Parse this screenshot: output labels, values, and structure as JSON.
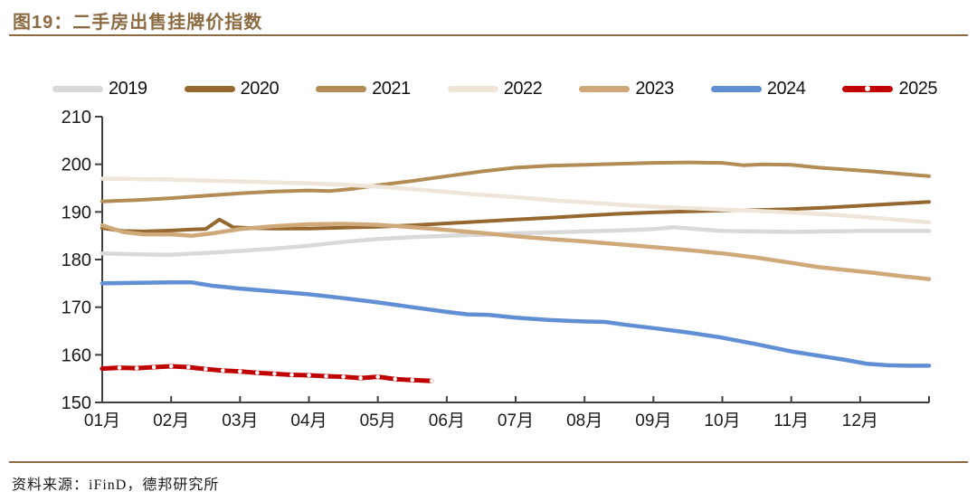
{
  "header": {
    "title": "图19：二手房出售挂牌价指数"
  },
  "footer": {
    "source": "资料来源：iFinD，德邦研究所"
  },
  "colors": {
    "accent_brown": "#8C6A42",
    "axis": "#404040",
    "tick_text": "#1a1a1a"
  },
  "chart_data": {
    "type": "line",
    "title": "二手房出售挂牌价指数",
    "legend_position": "top",
    "grid": false,
    "x_axis": {
      "unit": "month",
      "range_months": [
        0,
        12
      ],
      "tick_labels": [
        "01月",
        "02月",
        "03月",
        "04月",
        "05月",
        "06月",
        "07月",
        "08月",
        "09月",
        "10月",
        "11月",
        "12月"
      ]
    },
    "y_axis": {
      "min": 150,
      "max": 210,
      "step": 10,
      "ticks": [
        210,
        200,
        190,
        180,
        170,
        160,
        150
      ]
    },
    "series": [
      {
        "name": "2019",
        "color": "#D9D9D9",
        "width": 4.5,
        "points": [
          [
            0,
            181.3
          ],
          [
            0.5,
            181.1
          ],
          [
            1,
            181.0
          ],
          [
            1.5,
            181.4
          ],
          [
            2,
            181.8
          ],
          [
            2.5,
            182.3
          ],
          [
            3,
            182.9
          ],
          [
            3.5,
            183.7
          ],
          [
            4,
            184.3
          ],
          [
            4.5,
            184.7
          ],
          [
            5,
            185.0
          ],
          [
            5.5,
            185.2
          ],
          [
            6,
            185.5
          ],
          [
            6.5,
            185.7
          ],
          [
            7,
            185.9
          ],
          [
            7.5,
            186.1
          ],
          [
            8,
            186.4
          ],
          [
            8.3,
            186.8
          ],
          [
            8.7,
            186.3
          ],
          [
            9,
            186.0
          ],
          [
            9.5,
            185.9
          ],
          [
            10,
            185.8
          ],
          [
            10.5,
            185.9
          ],
          [
            11,
            186.0
          ],
          [
            11.5,
            186.0
          ],
          [
            12,
            186.0
          ]
        ]
      },
      {
        "name": "2020",
        "color": "#95682F",
        "width": 4,
        "points": [
          [
            0,
            186.6
          ],
          [
            0.3,
            186.0
          ],
          [
            0.6,
            185.9
          ],
          [
            1,
            186.1
          ],
          [
            1.3,
            186.3
          ],
          [
            1.5,
            186.4
          ],
          [
            1.7,
            188.4
          ],
          [
            1.9,
            186.8
          ],
          [
            2.2,
            186.6
          ],
          [
            2.5,
            186.5
          ],
          [
            3,
            186.5
          ],
          [
            3.5,
            186.7
          ],
          [
            4,
            186.9
          ],
          [
            4.5,
            187.2
          ],
          [
            5,
            187.6
          ],
          [
            5.5,
            188.0
          ],
          [
            6,
            188.4
          ],
          [
            6.5,
            188.8
          ],
          [
            7,
            189.2
          ],
          [
            7.5,
            189.6
          ],
          [
            8,
            189.9
          ],
          [
            8.5,
            190.1
          ],
          [
            9,
            190.3
          ],
          [
            9.5,
            190.4
          ],
          [
            10,
            190.6
          ],
          [
            10.5,
            190.9
          ],
          [
            11,
            191.3
          ],
          [
            11.5,
            191.7
          ],
          [
            12,
            192.1
          ]
        ]
      },
      {
        "name": "2021",
        "color": "#B28B55",
        "width": 4,
        "points": [
          [
            0,
            192.2
          ],
          [
            0.5,
            192.5
          ],
          [
            1,
            192.9
          ],
          [
            1.5,
            193.4
          ],
          [
            2,
            193.9
          ],
          [
            2.5,
            194.3
          ],
          [
            3,
            194.5
          ],
          [
            3.3,
            194.4
          ],
          [
            3.6,
            194.8
          ],
          [
            4,
            195.6
          ],
          [
            4.5,
            196.5
          ],
          [
            5,
            197.5
          ],
          [
            5.5,
            198.5
          ],
          [
            6,
            199.3
          ],
          [
            6.5,
            199.7
          ],
          [
            7,
            199.9
          ],
          [
            7.5,
            200.1
          ],
          [
            8,
            200.3
          ],
          [
            8.5,
            200.4
          ],
          [
            9,
            200.3
          ],
          [
            9.3,
            199.8
          ],
          [
            9.6,
            200.0
          ],
          [
            10,
            199.9
          ],
          [
            10.4,
            199.3
          ],
          [
            10.8,
            198.9
          ],
          [
            11.2,
            198.5
          ],
          [
            11.6,
            198.0
          ],
          [
            12,
            197.5
          ]
        ]
      },
      {
        "name": "2022",
        "color": "#EFE5D8",
        "width": 4.5,
        "points": [
          [
            0,
            197.0
          ],
          [
            0.5,
            196.9
          ],
          [
            1,
            196.8
          ],
          [
            1.5,
            196.6
          ],
          [
            2,
            196.4
          ],
          [
            2.5,
            196.2
          ],
          [
            3,
            196.0
          ],
          [
            3.5,
            195.7
          ],
          [
            4,
            195.3
          ],
          [
            4.5,
            194.8
          ],
          [
            5,
            194.2
          ],
          [
            5.5,
            193.6
          ],
          [
            6,
            193.1
          ],
          [
            6.5,
            192.5
          ],
          [
            7,
            192.0
          ],
          [
            7.5,
            191.5
          ],
          [
            8,
            191.1
          ],
          [
            8.5,
            190.8
          ],
          [
            9,
            190.5
          ],
          [
            9.5,
            190.2
          ],
          [
            10,
            189.9
          ],
          [
            10.5,
            189.5
          ],
          [
            11,
            189.0
          ],
          [
            11.5,
            188.4
          ],
          [
            12,
            187.8
          ]
        ]
      },
      {
        "name": "2023",
        "color": "#CFA97A",
        "width": 4.5,
        "points": [
          [
            0,
            187.2
          ],
          [
            0.3,
            185.8
          ],
          [
            0.6,
            185.3
          ],
          [
            1,
            185.3
          ],
          [
            1.3,
            185.0
          ],
          [
            1.6,
            185.5
          ],
          [
            2,
            186.4
          ],
          [
            2.5,
            187.0
          ],
          [
            3,
            187.4
          ],
          [
            3.5,
            187.5
          ],
          [
            4,
            187.3
          ],
          [
            4.5,
            186.8
          ],
          [
            5,
            186.2
          ],
          [
            5.5,
            185.6
          ],
          [
            6,
            184.9
          ],
          [
            6.5,
            184.3
          ],
          [
            7,
            183.8
          ],
          [
            7.5,
            183.2
          ],
          [
            8,
            182.6
          ],
          [
            8.5,
            182.0
          ],
          [
            9,
            181.3
          ],
          [
            9.5,
            180.4
          ],
          [
            10,
            179.3
          ],
          [
            10.4,
            178.4
          ],
          [
            10.8,
            177.8
          ],
          [
            11.2,
            177.2
          ],
          [
            11.6,
            176.5
          ],
          [
            12,
            175.9
          ]
        ]
      },
      {
        "name": "2024",
        "color": "#608FD4",
        "width": 4.5,
        "points": [
          [
            0,
            175.0
          ],
          [
            0.5,
            175.1
          ],
          [
            1,
            175.2
          ],
          [
            1.3,
            175.2
          ],
          [
            1.6,
            174.5
          ],
          [
            2,
            173.9
          ],
          [
            2.5,
            173.3
          ],
          [
            3,
            172.7
          ],
          [
            3.5,
            171.9
          ],
          [
            4,
            171.0
          ],
          [
            4.5,
            170.0
          ],
          [
            5,
            169.0
          ],
          [
            5.3,
            168.5
          ],
          [
            5.6,
            168.4
          ],
          [
            6,
            167.8
          ],
          [
            6.5,
            167.3
          ],
          [
            7,
            167.0
          ],
          [
            7.3,
            166.9
          ],
          [
            7.6,
            166.3
          ],
          [
            8,
            165.6
          ],
          [
            8.5,
            164.7
          ],
          [
            9,
            163.6
          ],
          [
            9.5,
            162.2
          ],
          [
            10,
            160.7
          ],
          [
            10.4,
            159.8
          ],
          [
            10.8,
            158.9
          ],
          [
            11.1,
            158.1
          ],
          [
            11.4,
            157.8
          ],
          [
            11.7,
            157.7
          ],
          [
            12,
            157.7
          ]
        ]
      },
      {
        "name": "2025",
        "color": "#C00000",
        "width": 5,
        "marker": "white-dots",
        "points": [
          [
            0,
            157.1
          ],
          [
            0.25,
            157.3
          ],
          [
            0.5,
            157.2
          ],
          [
            0.75,
            157.4
          ],
          [
            1,
            157.6
          ],
          [
            1.25,
            157.4
          ],
          [
            1.5,
            157.0
          ],
          [
            1.75,
            156.7
          ],
          [
            2,
            156.5
          ],
          [
            2.25,
            156.2
          ],
          [
            2.5,
            156.0
          ],
          [
            2.75,
            155.8
          ],
          [
            3,
            155.7
          ],
          [
            3.25,
            155.5
          ],
          [
            3.5,
            155.4
          ],
          [
            3.75,
            155.1
          ],
          [
            4,
            155.4
          ],
          [
            4.25,
            154.9
          ],
          [
            4.5,
            154.7
          ],
          [
            4.78,
            154.5
          ]
        ]
      }
    ]
  }
}
